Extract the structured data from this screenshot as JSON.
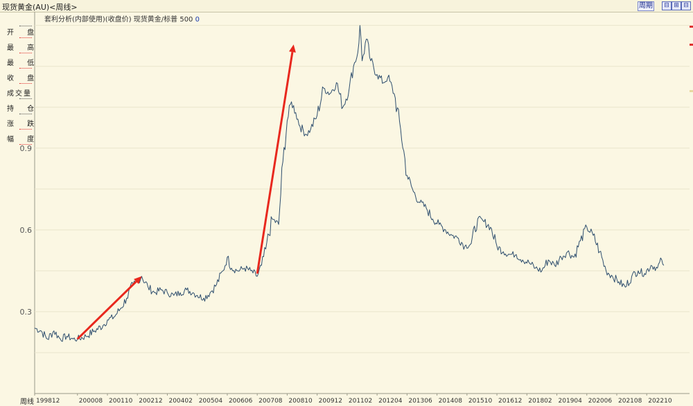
{
  "window": {
    "title": "现货黄金(AU)<周线>",
    "period_button": "周期",
    "controls": [
      "⊟",
      "⊞",
      "⊟",
      "⊡"
    ]
  },
  "header": {
    "label": "套利分析(内部使用)(收盘价) 现货黄金/标普 500",
    "value": "0"
  },
  "left_panel": {
    "items": [
      "开 盘",
      "最 高",
      "最 低",
      "收 盘",
      "成交量",
      "持 仓",
      "涨 跌",
      "幅 度"
    ]
  },
  "colors": {
    "background": "#fbf7e3",
    "line": "#2e4e6e",
    "grid": "#e9e5cc",
    "arrow": "#e8281e"
  },
  "chart_data": {
    "type": "line",
    "title": "",
    "xlabel": "周线",
    "ylabel": "",
    "ylim": [
      0.0,
      1.4
    ],
    "y_ticks": [
      0.3,
      0.6,
      0.9
    ],
    "grid": true,
    "x_tick_labels": [
      "199812",
      "200008",
      "200110",
      "200212",
      "200402",
      "200504",
      "200606",
      "200708",
      "200810",
      "200912",
      "201102",
      "201204",
      "201306",
      "201408",
      "201510",
      "201612",
      "201802",
      "201904",
      "202006",
      "202108",
      "202210"
    ],
    "series": [
      {
        "points": [
          [
            "1998-12",
            0.24
          ],
          [
            "1999-03",
            0.23
          ],
          [
            "1999-06",
            0.2
          ],
          [
            "1999-09",
            0.23
          ],
          [
            "1999-12",
            0.2
          ],
          [
            "2000-03",
            0.21
          ],
          [
            "2000-06",
            0.2
          ],
          [
            "2000-08",
            0.2
          ],
          [
            "2000-12",
            0.21
          ],
          [
            "2001-04",
            0.23
          ],
          [
            "2001-08",
            0.25
          ],
          [
            "2001-10",
            0.27
          ],
          [
            "2002-01",
            0.28
          ],
          [
            "2002-04",
            0.31
          ],
          [
            "2002-07",
            0.35
          ],
          [
            "2002-10",
            0.4
          ],
          [
            "2002-12",
            0.41
          ],
          [
            "2003-02",
            0.43
          ],
          [
            "2003-05",
            0.39
          ],
          [
            "2003-08",
            0.37
          ],
          [
            "2003-11",
            0.38
          ],
          [
            "2004-02",
            0.37
          ],
          [
            "2004-05",
            0.36
          ],
          [
            "2004-08",
            0.37
          ],
          [
            "2004-11",
            0.38
          ],
          [
            "2005-02",
            0.37
          ],
          [
            "2005-04",
            0.36
          ],
          [
            "2005-07",
            0.35
          ],
          [
            "2005-10",
            0.37
          ],
          [
            "2006-01",
            0.4
          ],
          [
            "2006-04",
            0.45
          ],
          [
            "2006-06",
            0.5
          ],
          [
            "2006-08",
            0.46
          ],
          [
            "2006-11",
            0.45
          ],
          [
            "2007-02",
            0.46
          ],
          [
            "2007-05",
            0.45
          ],
          [
            "2007-08",
            0.43
          ],
          [
            "2007-10",
            0.47
          ],
          [
            "2007-12",
            0.53
          ],
          [
            "2008-03",
            0.64
          ],
          [
            "2008-06",
            0.62
          ],
          [
            "2008-08",
            0.85
          ],
          [
            "2008-10",
            1.0
          ],
          [
            "2008-12",
            1.07
          ],
          [
            "2009-02",
            1.03
          ],
          [
            "2009-04",
            0.98
          ],
          [
            "2009-07",
            0.95
          ],
          [
            "2009-09",
            0.97
          ],
          [
            "2009-12",
            1.02
          ],
          [
            "2010-03",
            1.12
          ],
          [
            "2010-06",
            1.1
          ],
          [
            "2010-09",
            1.14
          ],
          [
            "2010-12",
            1.05
          ],
          [
            "2011-03",
            1.12
          ],
          [
            "2011-05",
            1.2
          ],
          [
            "2011-07",
            1.25
          ],
          [
            "2011-08",
            1.35
          ],
          [
            "2011-09",
            1.22
          ],
          [
            "2011-11",
            1.3
          ],
          [
            "2012-01",
            1.22
          ],
          [
            "2012-04",
            1.17
          ],
          [
            "2012-07",
            1.14
          ],
          [
            "2012-09",
            1.16
          ],
          [
            "2012-12",
            1.1
          ],
          [
            "2013-03",
            0.97
          ],
          [
            "2013-06",
            0.8
          ],
          [
            "2013-09",
            0.74
          ],
          [
            "2013-12",
            0.7
          ],
          [
            "2014-03",
            0.68
          ],
          [
            "2014-06",
            0.64
          ],
          [
            "2014-09",
            0.62
          ],
          [
            "2014-12",
            0.6
          ],
          [
            "2015-03",
            0.58
          ],
          [
            "2015-06",
            0.57
          ],
          [
            "2015-09",
            0.54
          ],
          [
            "2015-12",
            0.55
          ],
          [
            "2016-03",
            0.64
          ],
          [
            "2016-06",
            0.63
          ],
          [
            "2016-09",
            0.61
          ],
          [
            "2016-12",
            0.54
          ],
          [
            "2017-03",
            0.52
          ],
          [
            "2017-06",
            0.51
          ],
          [
            "2017-09",
            0.51
          ],
          [
            "2017-12",
            0.49
          ],
          [
            "2018-03",
            0.48
          ],
          [
            "2018-06",
            0.46
          ],
          [
            "2018-09",
            0.45
          ],
          [
            "2018-12",
            0.49
          ],
          [
            "2019-03",
            0.47
          ],
          [
            "2019-06",
            0.5
          ],
          [
            "2019-09",
            0.52
          ],
          [
            "2019-12",
            0.5
          ],
          [
            "2020-03",
            0.56
          ],
          [
            "2020-06",
            0.61
          ],
          [
            "2020-09",
            0.58
          ],
          [
            "2020-12",
            0.52
          ],
          [
            "2021-03",
            0.45
          ],
          [
            "2021-06",
            0.43
          ],
          [
            "2021-09",
            0.41
          ],
          [
            "2021-12",
            0.39
          ],
          [
            "2022-03",
            0.43
          ],
          [
            "2022-06",
            0.45
          ],
          [
            "2022-09",
            0.44
          ],
          [
            "2022-12",
            0.47
          ],
          [
            "2023-03",
            0.46
          ],
          [
            "2023-05",
            0.49
          ],
          [
            "2023-06",
            0.47
          ]
        ]
      }
    ],
    "annotations": [
      {
        "type": "arrow",
        "from": [
          "2000-08",
          0.2
        ],
        "to": [
          "2003-02",
          0.43
        ]
      },
      {
        "type": "arrow",
        "from": [
          "2007-08",
          0.44
        ],
        "to": [
          "2009-01",
          1.28
        ]
      }
    ]
  }
}
